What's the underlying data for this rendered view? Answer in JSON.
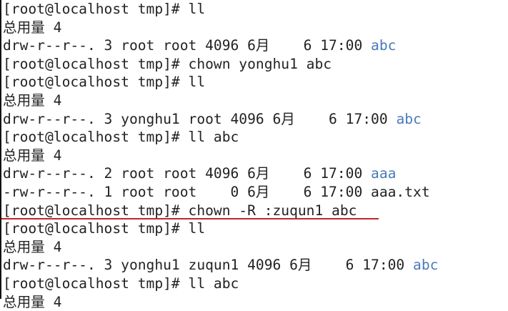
{
  "colors": {
    "text": "#222222",
    "directory": "#4a7ab8",
    "annotation_underline": "#c0262d",
    "background": "#ffffff"
  },
  "terminal": {
    "lines": [
      [
        {
          "t": "[root@localhost tmp]# ll"
        }
      ],
      [
        {
          "t": "总用量 4"
        }
      ],
      [
        {
          "t": "drw-r--r--. 3 root root 4096 6月    6 17:00 "
        },
        {
          "t": "abc",
          "dir": true
        }
      ],
      [
        {
          "t": "[root@localhost tmp]# chown yonghu1 abc"
        }
      ],
      [
        {
          "t": "[root@localhost tmp]# ll"
        }
      ],
      [
        {
          "t": "总用量 4"
        }
      ],
      [
        {
          "t": "drw-r--r--. 3 yonghu1 root 4096 6月    6 17:00 "
        },
        {
          "t": "abc",
          "dir": true
        }
      ],
      [
        {
          "t": "[root@localhost tmp]# ll abc"
        }
      ],
      [
        {
          "t": "总用量 4"
        }
      ],
      [
        {
          "t": "drw-r--r--. 2 root root 4096 6月    6 17:00 "
        },
        {
          "t": "aaa",
          "dir": true
        }
      ],
      [
        {
          "t": "-rw-r--r--. 1 root root    0 6月    6 17:00 aaa.txt"
        }
      ],
      [
        {
          "t": "[root@localhost tmp]# chown -R :zuqun1 abc"
        }
      ],
      [
        {
          "t": "[root@localhost tmp]# ll"
        }
      ],
      [
        {
          "t": "总用量 4"
        }
      ],
      [
        {
          "t": "drw-r--r--. 3 yonghu1 zuqun1 4096 6月    6 17:00 "
        },
        {
          "t": "abc",
          "dir": true
        }
      ],
      [
        {
          "t": "[root@localhost tmp]# ll abc"
        }
      ],
      [
        {
          "t": "总用量 4"
        }
      ]
    ]
  }
}
